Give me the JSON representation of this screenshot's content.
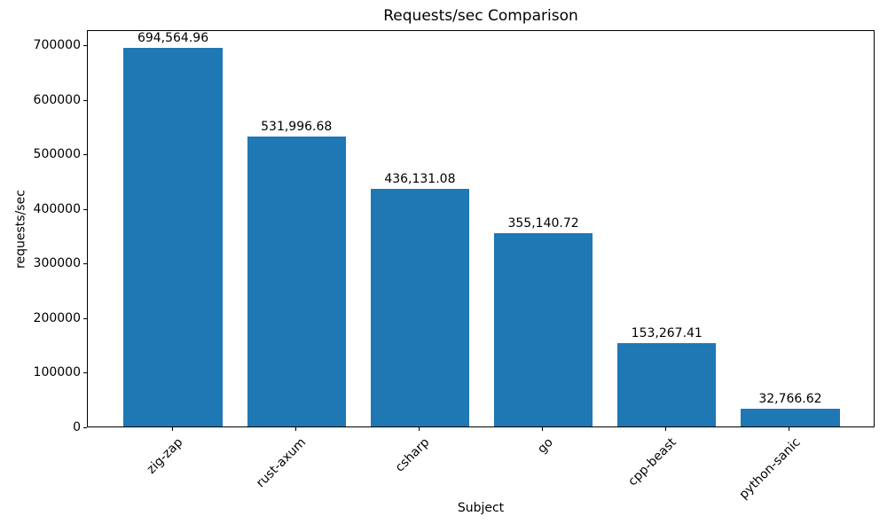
{
  "chart_data": {
    "type": "bar",
    "title": "Requests/sec Comparison",
    "xlabel": "Subject",
    "ylabel": "requests/sec",
    "categories": [
      "zig-zap",
      "rust-axum",
      "csharp",
      "go",
      "cpp-beast",
      "python-sanic"
    ],
    "values": [
      694564.96,
      531996.68,
      436131.08,
      355140.72,
      153267.41,
      32766.62
    ],
    "value_labels": [
      "694,564.96",
      "531,996.68",
      "436,131.08",
      "355,140.72",
      "153,267.41",
      "32,766.62"
    ],
    "ylim": [
      0,
      729293
    ],
    "yticks": [
      0,
      100000,
      200000,
      300000,
      400000,
      500000,
      600000,
      700000
    ],
    "ytick_labels": [
      "0",
      "100000",
      "200000",
      "300000",
      "400000",
      "500000",
      "600000",
      "700000"
    ],
    "bar_color": "#1f77b4",
    "grid": false,
    "legend": null,
    "x_tick_rotation": 45
  }
}
